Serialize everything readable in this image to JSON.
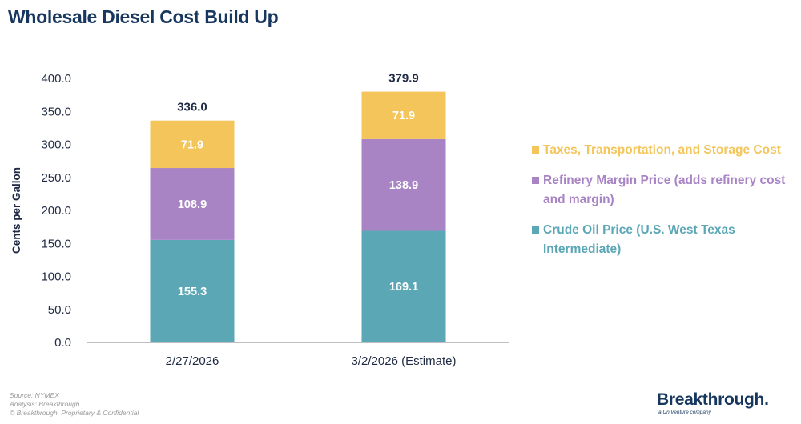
{
  "title": "Wholesale Diesel Cost Build Up",
  "chart_data": {
    "type": "bar",
    "stacked": true,
    "categories": [
      "2/27/2026",
      "3/2/2026 (Estimate)"
    ],
    "series": [
      {
        "name": "Crude Oil Price (U.S. West Texas Intermediate)",
        "values": [
          155.3,
          169.1
        ],
        "color": "#5ba7b6"
      },
      {
        "name": "Refinery Margin Price (adds refinery cost and margin)",
        "values": [
          108.9,
          138.9
        ],
        "color": "#a884c5"
      },
      {
        "name": "Taxes, Transportation, and Storage Cost",
        "values": [
          71.9,
          71.9
        ],
        "color": "#f4c55a"
      }
    ],
    "totals": [
      336.0,
      379.9
    ],
    "ylabel": "Cents per Gallon",
    "ylim": [
      0,
      400
    ],
    "yticks": [
      "0.0",
      "50.0",
      "100.0",
      "150.0",
      "200.0",
      "250.0",
      "300.0",
      "350.0",
      "400.0"
    ],
    "grid": false,
    "legend_position": "right",
    "axis_text_color": "#1f2a44",
    "segment_label_color": "#ffffff"
  },
  "legend": [
    {
      "label": "Taxes, Transportation, and Storage Cost",
      "color": "#f4c55a"
    },
    {
      "label": "Refinery Margin Price (adds refinery cost and margin)",
      "color": "#a884c5"
    },
    {
      "label": "Crude Oil Price (U.S. West Texas Intermediate)",
      "color": "#5ba7b6"
    }
  ],
  "footer": {
    "source": "Source: NYMEX",
    "analysis": "Analysis: Breakthrough",
    "copyright": "© Breakthrough, Proprietary & Confidential"
  },
  "logo": {
    "name": "Breakthrough.",
    "tagline": "a UniVenture company"
  }
}
